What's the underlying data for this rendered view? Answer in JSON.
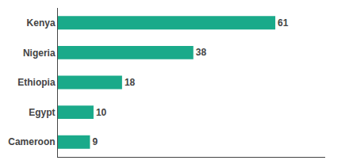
{
  "chart_data": {
    "type": "bar",
    "orientation": "horizontal",
    "categories": [
      "Cameroon",
      "Egypt",
      "Ethiopia",
      "Nigeria",
      "Kenya"
    ],
    "values": [
      9,
      10,
      18,
      38,
      61
    ],
    "color": "#1aaa8a",
    "xlim": [
      0,
      75
    ],
    "xticks": [],
    "data_labels": true,
    "tick_labels": "y",
    "grid": false
  }
}
